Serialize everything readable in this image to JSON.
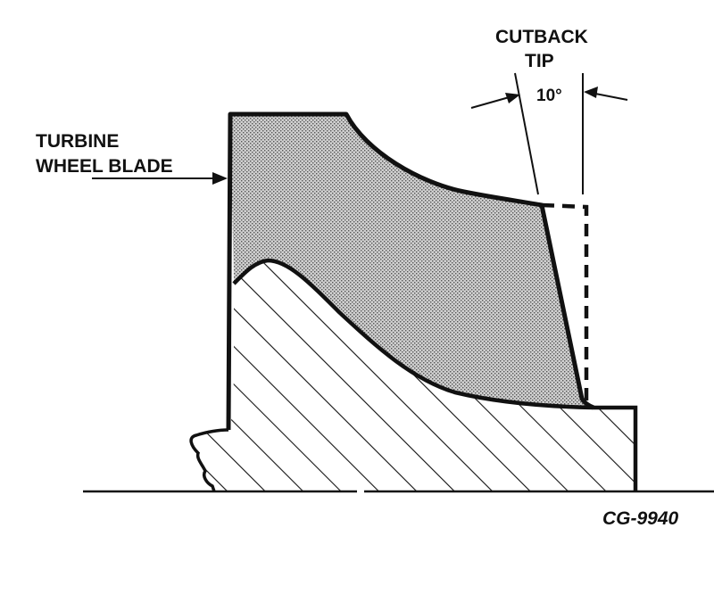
{
  "labels": {
    "blade_line1": "TURBINE",
    "blade_line2": "WHEEL BLADE",
    "cutback_line1": "CUTBACK",
    "cutback_line2": "TIP",
    "angle": "10°",
    "figure_id": "CG-9940"
  },
  "colors": {
    "ink": "#111111",
    "blade_fill": "#9a9a9a",
    "background": "#ffffff"
  }
}
